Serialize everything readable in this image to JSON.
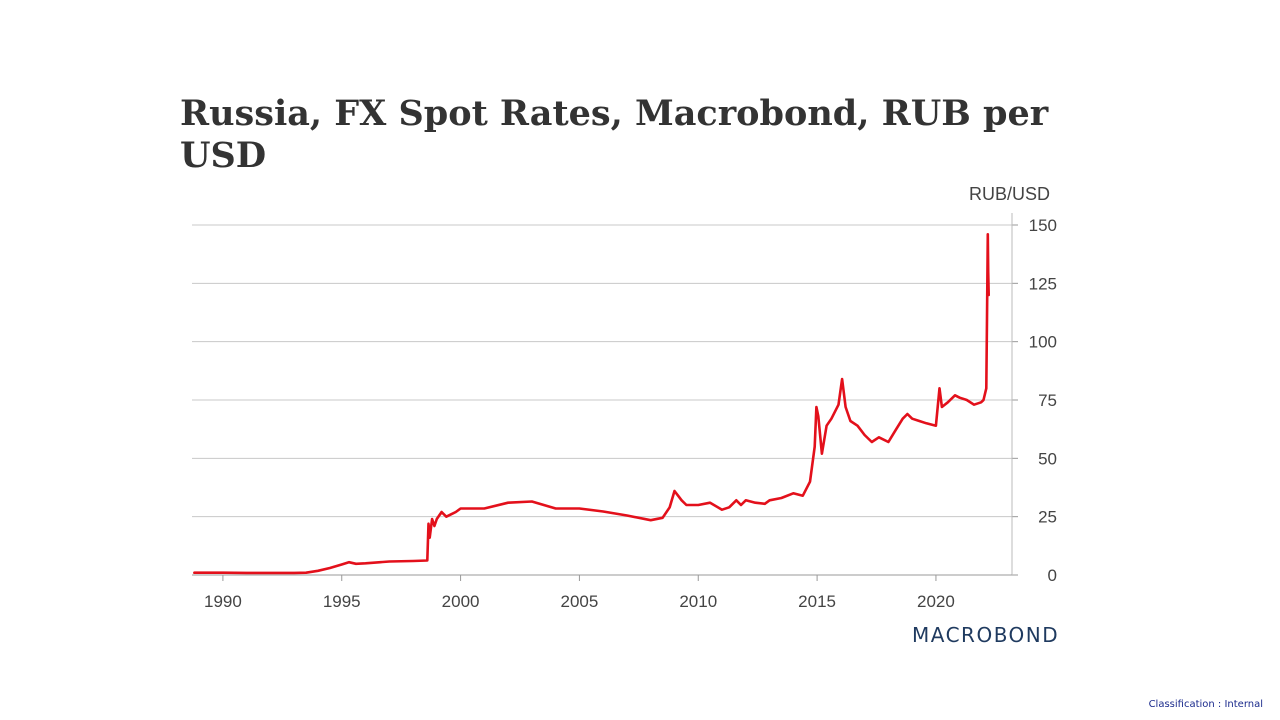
{
  "page": {
    "title": "Russia, FX Spot Rates, Macrobond, RUB per USD",
    "logo_text": "MACROBOND",
    "classification": "Classification : Internal"
  },
  "colors": {
    "series": "#e3101b",
    "grid": "#c8c8c8",
    "title": "#333333",
    "logo": "#1f3a5f",
    "classification": "#1a2a8c"
  },
  "chart_data": {
    "type": "line",
    "title": "Russia, FX Spot Rates, Macrobond, RUB per USD",
    "ylabel": "RUB/USD",
    "xlabel": "",
    "xlim": [
      1988.7,
      2023.2
    ],
    "ylim": [
      0,
      150
    ],
    "x_ticks": [
      1990,
      1995,
      2000,
      2005,
      2010,
      2015,
      2020
    ],
    "y_ticks": [
      0,
      25,
      50,
      75,
      100,
      125,
      150
    ],
    "y_axis_side": "right",
    "grid": "horizontal",
    "series": [
      {
        "color": "#e3101b",
        "x": [
          1988.8,
          1990.0,
          1991.0,
          1992.0,
          1993.0,
          1993.5,
          1994.0,
          1994.5,
          1995.0,
          1995.3,
          1995.6,
          1996.0,
          1997.0,
          1998.0,
          1998.6,
          1998.65,
          1998.7,
          1998.8,
          1998.9,
          1999.0,
          1999.2,
          1999.4,
          1999.6,
          1999.8,
          2000.0,
          2001.0,
          2002.0,
          2003.0,
          2004.0,
          2005.0,
          2006.0,
          2007.0,
          2008.0,
          2008.5,
          2008.8,
          2009.0,
          2009.15,
          2009.3,
          2009.5,
          2010.0,
          2010.5,
          2011.0,
          2011.3,
          2011.6,
          2011.8,
          2012.0,
          2012.4,
          2012.8,
          2013.0,
          2013.5,
          2014.0,
          2014.4,
          2014.7,
          2014.9,
          2014.97,
          2015.05,
          2015.2,
          2015.4,
          2015.6,
          2015.9,
          2016.05,
          2016.2,
          2016.4,
          2016.7,
          2017.0,
          2017.3,
          2017.6,
          2018.0,
          2018.3,
          2018.6,
          2018.8,
          2019.0,
          2019.3,
          2019.6,
          2020.0,
          2020.15,
          2020.25,
          2020.5,
          2020.8,
          2021.0,
          2021.3,
          2021.6,
          2021.9,
          2022.0,
          2022.12,
          2022.15,
          2022.18,
          2022.2,
          2022.22
        ],
        "values": [
          1.0,
          1.0,
          0.9,
          0.9,
          0.9,
          1.0,
          1.8,
          3.0,
          4.5,
          5.5,
          4.8,
          5.0,
          5.8,
          6.0,
          6.2,
          22.0,
          16.0,
          24.0,
          21.0,
          24.0,
          27.0,
          25.0,
          26.0,
          27.0,
          28.5,
          28.5,
          31.0,
          31.5,
          28.5,
          28.5,
          27.2,
          25.5,
          23.5,
          24.5,
          29.0,
          36.0,
          34.0,
          32.0,
          30.0,
          30.0,
          31.0,
          28.0,
          29.0,
          32.0,
          30.0,
          32.0,
          31.0,
          30.5,
          32.0,
          33.0,
          35.0,
          34.0,
          40.0,
          55.0,
          72.0,
          68.0,
          52.0,
          64.0,
          67.0,
          73.0,
          84.0,
          72.0,
          66.0,
          64.0,
          60.0,
          57.0,
          59.0,
          57.0,
          62.0,
          67.0,
          69.0,
          67.0,
          66.0,
          65.0,
          64.0,
          80.0,
          72.0,
          74.0,
          77.0,
          76.0,
          75.0,
          73.0,
          74.0,
          75.0,
          80.0,
          110.0,
          146.0,
          130.0,
          120.0
        ]
      }
    ]
  }
}
